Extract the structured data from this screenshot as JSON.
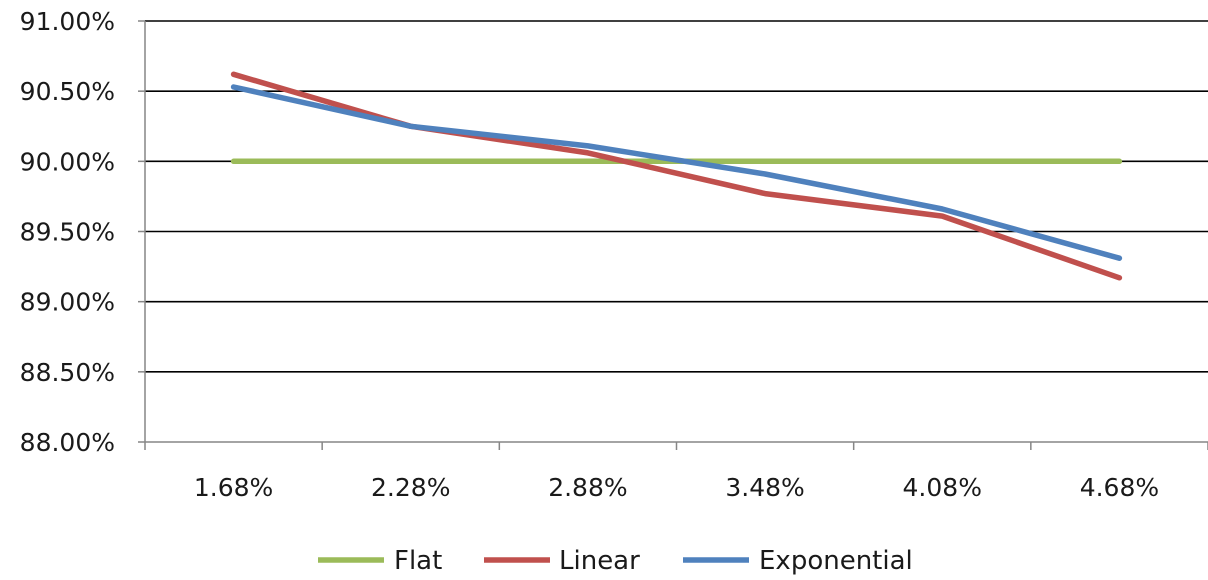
{
  "chart_data": {
    "type": "line",
    "categories": [
      "1.68%",
      "2.28%",
      "2.88%",
      "3.48%",
      "4.08%",
      "4.68%"
    ],
    "ylim": [
      88.0,
      91.0
    ],
    "yticks": [
      "88.00%",
      "88.50%",
      "89.00%",
      "89.50%",
      "90.00%",
      "90.50%",
      "91.00%"
    ],
    "grid": true,
    "legend_position": "bottom",
    "series": [
      {
        "name": "Flat",
        "color": "#9bbb59",
        "values": [
          90.0,
          90.0,
          90.0,
          90.0,
          90.0,
          90.0
        ]
      },
      {
        "name": "Linear",
        "color": "#c0504d",
        "values": [
          90.62,
          90.25,
          90.06,
          89.77,
          89.61,
          89.17
        ]
      },
      {
        "name": "Exponential",
        "color": "#4f81bd",
        "values": [
          90.53,
          90.25,
          90.11,
          89.91,
          89.66,
          89.31
        ]
      }
    ]
  }
}
